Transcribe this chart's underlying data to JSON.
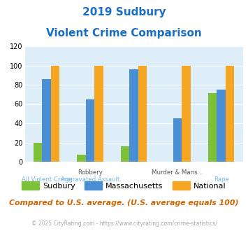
{
  "title_line1": "2019 Sudbury",
  "title_line2": "Violent Crime Comparison",
  "title_color": "#1a6fc4",
  "sudbury": [
    20,
    7,
    16,
    0,
    71
  ],
  "massachusetts": [
    86,
    65,
    96,
    45,
    75
  ],
  "national": [
    100,
    100,
    100,
    100,
    100
  ],
  "group_labels_top": [
    "",
    "Robbery",
    "",
    "Murder & Mans...",
    ""
  ],
  "group_labels_bot": [
    "All Violent Crime",
    "Aggravated Assault",
    "",
    "",
    "Rape"
  ],
  "sudbury_color": "#7dc13a",
  "massachusetts_color": "#4a8fd4",
  "national_color": "#f5a623",
  "ylim": [
    0,
    120
  ],
  "yticks": [
    0,
    20,
    40,
    60,
    80,
    100,
    120
  ],
  "plot_bg": "#ddeef8",
  "footer_text": "© 2025 CityRating.com - https://www.cityrating.com/crime-statistics/",
  "footer_color": "#aaaaaa",
  "compare_text": "Compared to U.S. average. (U.S. average equals 100)",
  "compare_color": "#cc6600",
  "legend_labels": [
    "Sudbury",
    "Massachusetts",
    "National"
  ]
}
